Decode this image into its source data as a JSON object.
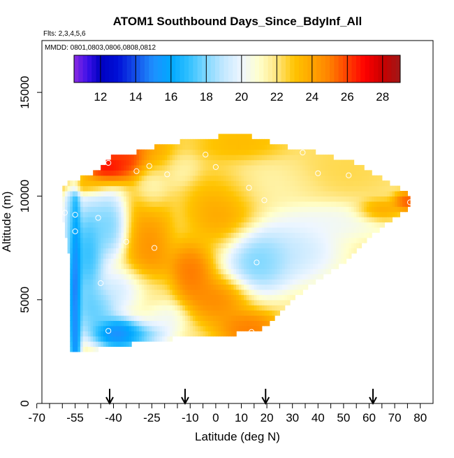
{
  "chart_data": {
    "type": "heatmap",
    "title": "ATOM1 Southbound Days_Since_BdyInf_All",
    "flights_label": "Flts: 2,3,4,5,6",
    "dates_label": "MMDD: 0801,0803,0806,0808,0812",
    "xlabel": "Latitude (deg N)",
    "ylabel": "Altitude (m)",
    "xlim": [
      -68,
      85
    ],
    "ylim": [
      0,
      17500
    ],
    "x_ticks": [
      -70,
      -55,
      -40,
      -25,
      -10,
      0,
      10,
      20,
      30,
      40,
      50,
      60,
      70,
      80
    ],
    "x_minor_ticks": [
      -65,
      -60,
      -50,
      -45,
      -35,
      -30,
      -20,
      -15,
      -5,
      5,
      15,
      25,
      35,
      45,
      55,
      65,
      75
    ],
    "y_ticks": [
      0,
      5000,
      10000,
      15000
    ],
    "colorbar": {
      "range": [
        10.5,
        29
      ],
      "ticks": [
        12,
        14,
        16,
        18,
        20,
        22,
        24,
        26,
        28
      ],
      "stops": [
        {
          "v": 10.5,
          "c": "#8a2be2"
        },
        {
          "v": 11.3,
          "c": "#3a10e8"
        },
        {
          "v": 12.0,
          "c": "#0000c0"
        },
        {
          "v": 13.0,
          "c": "#0010d8"
        },
        {
          "v": 14.0,
          "c": "#1450e8"
        },
        {
          "v": 15.0,
          "c": "#1e90ff"
        },
        {
          "v": 16.0,
          "c": "#00a8ff"
        },
        {
          "v": 17.0,
          "c": "#30c0ff"
        },
        {
          "v": 18.0,
          "c": "#80d8ff"
        },
        {
          "v": 19.0,
          "c": "#c4e8ff"
        },
        {
          "v": 20.0,
          "c": "#eef6ff"
        },
        {
          "v": 21.0,
          "c": "#ffffcc"
        },
        {
          "v": 22.0,
          "c": "#ffe680"
        },
        {
          "v": 23.0,
          "c": "#ffc400"
        },
        {
          "v": 24.0,
          "c": "#ffa500"
        },
        {
          "v": 25.0,
          "c": "#ff8000"
        },
        {
          "v": 26.0,
          "c": "#ff4000"
        },
        {
          "v": 27.0,
          "c": "#ff0000"
        },
        {
          "v": 28.0,
          "c": "#c80000"
        },
        {
          "v": 29.0,
          "c": "#a01818"
        }
      ]
    },
    "boundary": {
      "lat_start": -60,
      "lat_end": 76,
      "top_lat": [
        -60,
        -52,
        -45,
        -40,
        -32,
        -20,
        -10,
        0,
        2,
        10,
        30,
        40,
        48,
        55,
        70,
        76
      ],
      "top_alt": [
        10500,
        10900,
        11300,
        12100,
        12100,
        12500,
        12700,
        12700,
        13000,
        13000,
        12300,
        12100,
        11800,
        11600,
        10500,
        10000
      ],
      "bottom_lat": [
        -60,
        -57,
        -56.5,
        -55,
        -48,
        -42,
        -36,
        -28,
        -20,
        -10,
        0,
        10,
        16,
        22,
        30,
        38,
        45,
        52,
        58,
        64,
        70,
        76
      ],
      "bottom_alt": [
        9000,
        7000,
        2500,
        2600,
        2600,
        2700,
        2800,
        3000,
        3100,
        3200,
        3300,
        3400,
        3500,
        4000,
        5000,
        5800,
        6400,
        7000,
        7800,
        8400,
        9000,
        9500
      ]
    },
    "features": {
      "background": 21.8,
      "blobs": [
        {
          "lat": -43,
          "alt": 11400,
          "slat": 5,
          "salt": 400,
          "v": 28.2
        },
        {
          "lat": -30,
          "alt": 11800,
          "slat": 9,
          "salt": 550,
          "v": 27.5
        },
        {
          "lat": -52,
          "alt": 10600,
          "slat": 6,
          "salt": 250,
          "v": 24.0
        },
        {
          "lat": -57,
          "alt": 8500,
          "slat": 1.5,
          "salt": 1300,
          "v": 17.5
        },
        {
          "lat": -55,
          "alt": 5500,
          "slat": 1.3,
          "salt": 3000,
          "v": 11.8
        },
        {
          "lat": -50,
          "alt": 7200,
          "slat": 3.5,
          "salt": 1400,
          "v": 15.5
        },
        {
          "lat": -42,
          "alt": 8600,
          "slat": 4,
          "salt": 900,
          "v": 16.8
        },
        {
          "lat": -38,
          "alt": 3400,
          "slat": 5.5,
          "salt": 400,
          "v": 12.3
        },
        {
          "lat": -30,
          "alt": 3400,
          "slat": 6,
          "salt": 350,
          "v": 16.0
        },
        {
          "lat": -25,
          "alt": 10900,
          "slat": 3.5,
          "salt": 900,
          "v": 20.2
        },
        {
          "lat": -16,
          "alt": 11500,
          "slat": 5,
          "salt": 500,
          "v": 20.5
        },
        {
          "lat": -26,
          "alt": 7300,
          "slat": 5,
          "salt": 1800,
          "v": 25.3
        },
        {
          "lat": -10,
          "alt": 6300,
          "slat": 5,
          "salt": 800,
          "v": 26.2
        },
        {
          "lat": 3,
          "alt": 9500,
          "slat": 8,
          "salt": 1000,
          "v": 24.8
        },
        {
          "lat": 0,
          "alt": 5000,
          "slat": 7,
          "salt": 650,
          "v": 25.5
        },
        {
          "lat": 13,
          "alt": 3600,
          "slat": 7,
          "salt": 500,
          "v": 26.0
        },
        {
          "lat": -33,
          "alt": 5500,
          "slat": 8,
          "salt": 600,
          "v": 18.5
        },
        {
          "lat": -47,
          "alt": 4500,
          "slat": 5,
          "salt": 700,
          "v": 16.5
        },
        {
          "lat": -22,
          "alt": 4200,
          "slat": 6,
          "salt": 500,
          "v": 19.3
        },
        {
          "lat": 17,
          "alt": 6900,
          "slat": 7,
          "salt": 850,
          "v": 16.6
        },
        {
          "lat": 30,
          "alt": 7400,
          "slat": 10,
          "salt": 900,
          "v": 18.4
        },
        {
          "lat": 45,
          "alt": 8800,
          "slat": 13,
          "salt": 500,
          "v": 19.8
        },
        {
          "lat": 18,
          "alt": 10500,
          "slat": 12,
          "salt": 800,
          "v": 21.3
        },
        {
          "lat": 50,
          "alt": 11300,
          "slat": 12,
          "salt": 800,
          "v": 22.6
        },
        {
          "lat": 75,
          "alt": 9750,
          "slat": 3,
          "salt": 250,
          "v": 27.0
        },
        {
          "lat": 64,
          "alt": 9300,
          "slat": 5,
          "salt": 300,
          "v": 25.0
        },
        {
          "lat": 10,
          "alt": 12500,
          "slat": 10,
          "salt": 500,
          "v": 23.8
        }
      ]
    },
    "sample_points": [
      {
        "lat": -42,
        "alt": 11600
      },
      {
        "lat": -31,
        "alt": 11200
      },
      {
        "lat": -26,
        "alt": 11450
      },
      {
        "lat": -19,
        "alt": 11050
      },
      {
        "lat": -4,
        "alt": 12000
      },
      {
        "lat": 0,
        "alt": 11400
      },
      {
        "lat": 34,
        "alt": 12100
      },
      {
        "lat": 40,
        "alt": 11100
      },
      {
        "lat": 52,
        "alt": 11000
      },
      {
        "lat": 13,
        "alt": 10400
      },
      {
        "lat": 19,
        "alt": 9800
      },
      {
        "lat": -59,
        "alt": 9200
      },
      {
        "lat": -55,
        "alt": 9100
      },
      {
        "lat": -46,
        "alt": 8950
      },
      {
        "lat": -55,
        "alt": 8300
      },
      {
        "lat": -35,
        "alt": 7800
      },
      {
        "lat": -24,
        "alt": 7500
      },
      {
        "lat": 16,
        "alt": 6800
      },
      {
        "lat": -45,
        "alt": 5800
      },
      {
        "lat": -42,
        "alt": 3500
      },
      {
        "lat": 14,
        "alt": 3450
      },
      {
        "lat": 76,
        "alt": 9700
      }
    ],
    "arrows_lat": [
      -41.5,
      -12,
      19.5,
      61.5
    ]
  }
}
